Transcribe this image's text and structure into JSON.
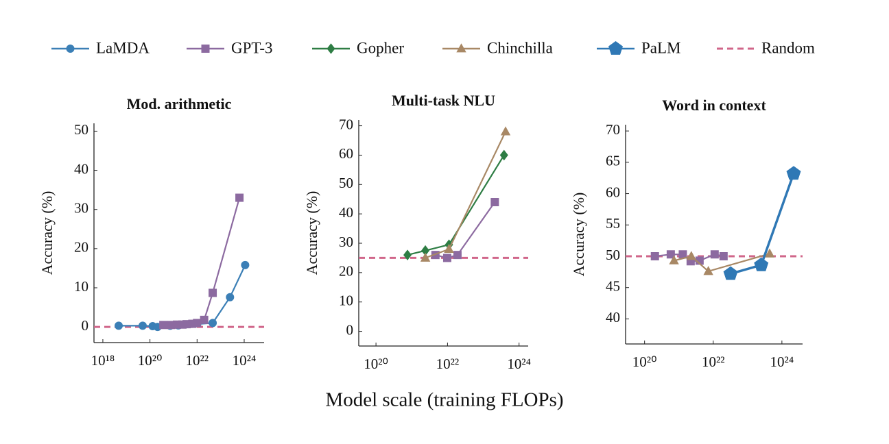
{
  "x_label": "Model scale (training FLOPs)",
  "log_x": true,
  "chart_data": [
    {
      "type": "line",
      "title": "Mod. arithmetic",
      "y_label": "Accuracy (%)",
      "xlim": [
        4.2e+17,
        7e+24
      ],
      "ylim": [
        -4,
        52
      ],
      "xticks": [
        {
          "value": 1e+18,
          "label": "10¹⁸"
        },
        {
          "value": 1e+20,
          "label": "10²⁰"
        },
        {
          "value": 1e+22,
          "label": "10²²"
        },
        {
          "value": 1e+24,
          "label": "10²⁴"
        }
      ],
      "yticks": [
        0,
        10,
        20,
        30,
        40,
        50
      ],
      "baseline": {
        "name": "Random",
        "value": 0,
        "color": "#d0668a"
      },
      "series": [
        {
          "name": "LaMDA",
          "color": "#3b7fb6",
          "marker": "circle",
          "x": [
            4.7e+18,
            4.9e+19,
            1.3e+20,
            2.1e+20,
            7.2e+20,
            1.6e+21,
            4.6e+22,
            2.5e+23,
            1.1e+24
          ],
          "values": [
            0.3,
            0.3,
            0.2,
            0,
            0.3,
            0.4,
            1,
            7.6,
            15.8
          ]
        },
        {
          "name": "GPT-3",
          "color": "#8c6aa0",
          "marker": "square",
          "x": [
            3.7e+20,
            8e+20,
            1.4e+21,
            2.4e+21,
            3.6e+21,
            6.3e+21,
            1e+22,
            2e+22,
            4.6e+22,
            6.3e+23
          ],
          "values": [
            0.5,
            0.5,
            0.6,
            0.6,
            0.7,
            0.8,
            1,
            1.8,
            8.7,
            33
          ]
        }
      ]
    },
    {
      "type": "line",
      "title": "Multi-task NLU",
      "y_label": "Accuracy (%)",
      "xlim": [
        3.3e+19,
        1.8e+24
      ],
      "ylim": [
        -5,
        72
      ],
      "xticks": [
        {
          "value": 1e+20,
          "label": "10²⁰"
        },
        {
          "value": 1e+22,
          "label": "10²²"
        },
        {
          "value": 1e+24,
          "label": "10²⁴"
        }
      ],
      "yticks": [
        0,
        10,
        20,
        30,
        40,
        50,
        60,
        70
      ],
      "baseline": {
        "name": "Random",
        "value": 25,
        "color": "#d0668a"
      },
      "series": [
        {
          "name": "GPT-3",
          "color": "#8c6aa0",
          "marker": "square",
          "x": [
            4.6e+21,
            9.8e+21,
            1.9e+22,
            2.1e+23
          ],
          "values": [
            26,
            25,
            26,
            44
          ]
        },
        {
          "name": "Gopher",
          "color": "#2e7d44",
          "marker": "diamond",
          "x": [
            7.6e+20,
            2.4e+21,
            1.1e+22,
            3.8e+23
          ],
          "values": [
            26,
            27.5,
            29.5,
            60
          ]
        },
        {
          "name": "Chinchilla",
          "color": "#a88865",
          "marker": "triangle",
          "x": [
            2.4e+21,
            1.1e+22,
            4.2e+23
          ],
          "values": [
            25,
            28,
            68
          ]
        }
      ]
    },
    {
      "type": "line",
      "title": "Word in context",
      "y_label": "Accuracy (%)",
      "xlim": [
        2.8e+19,
        4e+24
      ],
      "ylim": [
        36,
        71
      ],
      "xticks": [
        {
          "value": 1e+20,
          "label": "10²⁰"
        },
        {
          "value": 1e+22,
          "label": "10²²"
        },
        {
          "value": 1e+24,
          "label": "10²⁴"
        }
      ],
      "yticks": [
        40,
        45,
        50,
        55,
        60,
        65,
        70
      ],
      "baseline": {
        "name": "Random",
        "value": 50,
        "color": "#d0668a"
      },
      "series": [
        {
          "name": "GPT-3",
          "color": "#8c6aa0",
          "marker": "square",
          "x": [
            2e+20,
            5.8e+20,
            1.3e+21,
            2.2e+21,
            4e+21,
            1.1e+22,
            2e+22
          ],
          "values": [
            50,
            50.3,
            50.3,
            49.2,
            49.3,
            50.3,
            50
          ]
        },
        {
          "name": "Chinchilla",
          "color": "#a88865",
          "marker": "triangle",
          "x": [
            7.2e+20,
            2.3e+21,
            7.2e+21,
            4.4e+23
          ],
          "values": [
            49.3,
            50,
            47.6,
            50.4
          ]
        },
        {
          "name": "PaLM",
          "color": "#2f78b5",
          "marker": "pentagon",
          "x": [
            3.2e+22,
            2.5e+23,
            2.2e+24
          ],
          "values": [
            47.2,
            48.6,
            63.2
          ]
        }
      ]
    }
  ]
}
